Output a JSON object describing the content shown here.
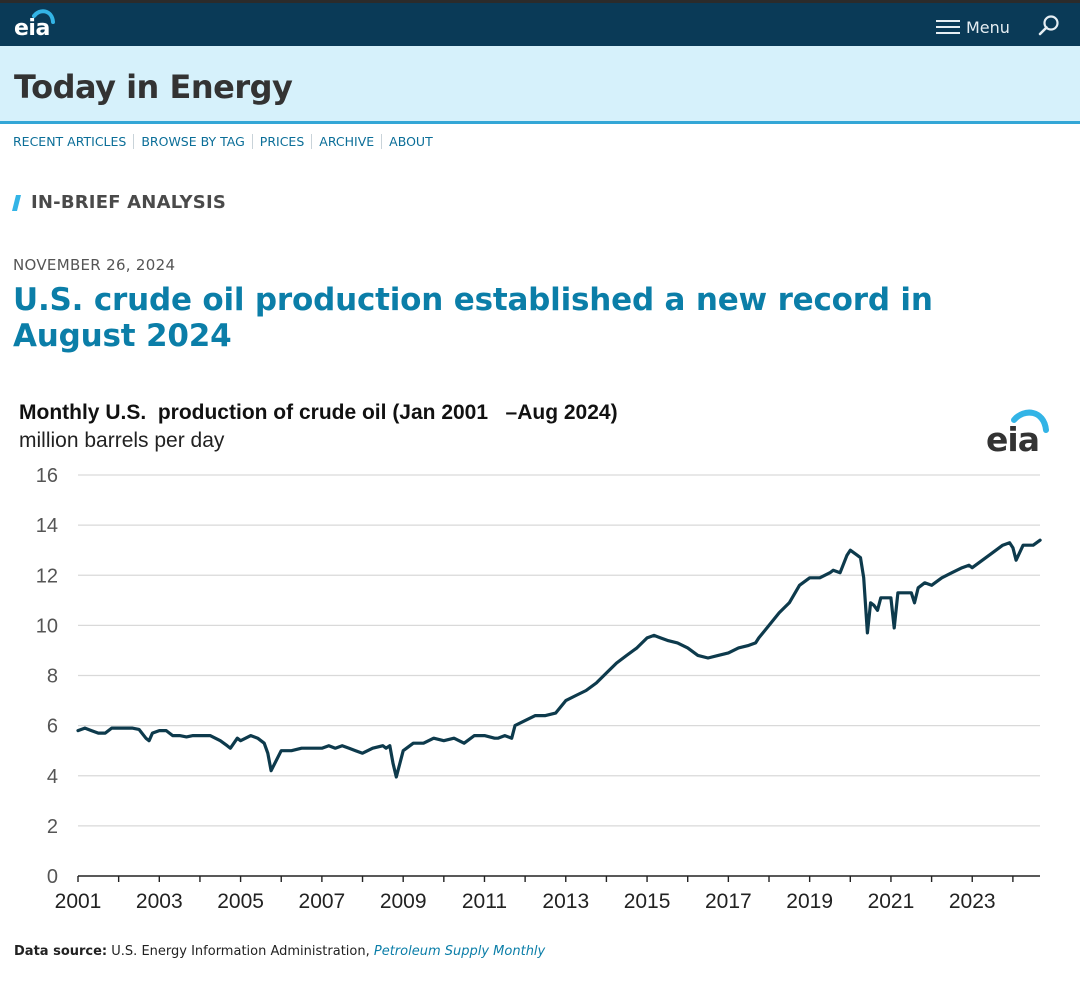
{
  "header": {
    "logo_text": "eia",
    "menu_label": "Menu"
  },
  "banner": {
    "title": "Today in Energy"
  },
  "nav": {
    "items": [
      "RECENT ARTICLES",
      "BROWSE BY TAG",
      "PRICES",
      "ARCHIVE",
      "ABOUT"
    ]
  },
  "section": {
    "label": "IN-BRIEF ANALYSIS"
  },
  "article": {
    "date": "NOVEMBER 26, 2024",
    "headline": "U.S. crude oil production established a new record in August 2024"
  },
  "chart_logo_text": "eia",
  "colors": {
    "line": "#0d3a4c",
    "accent": "#0b7ea8",
    "topbar": "#0a3a57",
    "banner": "#d6f1fb"
  },
  "chart_data": {
    "type": "line",
    "title": "Monthly U.S.  production of crude oil (Jan 2001   –Aug 2024)",
    "subtitle": "million barrels per day",
    "xlabel": "",
    "ylabel": "million barrels per day",
    "xlim": [
      2001,
      2024.667
    ],
    "ylim": [
      0,
      16
    ],
    "grid": true,
    "x_ticks": [
      "2001",
      "2003",
      "2005",
      "2007",
      "2009",
      "2011",
      "2013",
      "2015",
      "2017",
      "2019",
      "2021",
      "2023"
    ],
    "y_ticks": [
      "0",
      "2",
      "4",
      "6",
      "8",
      "10",
      "12",
      "14",
      "16"
    ],
    "series": [
      {
        "name": "U.S. crude oil production",
        "x": [
          2001.0,
          2001.17,
          2001.33,
          2001.5,
          2001.67,
          2001.83,
          2002.0,
          2002.17,
          2002.33,
          2002.5,
          2002.67,
          2002.75,
          2002.83,
          2003.0,
          2003.17,
          2003.33,
          2003.5,
          2003.67,
          2003.83,
          2004.0,
          2004.25,
          2004.5,
          2004.67,
          2004.75,
          2004.92,
          2005.0,
          2005.25,
          2005.42,
          2005.58,
          2005.67,
          2005.75,
          2006.0,
          2006.25,
          2006.5,
          2006.75,
          2007.0,
          2007.17,
          2007.33,
          2007.5,
          2007.67,
          2007.83,
          2008.0,
          2008.25,
          2008.5,
          2008.58,
          2008.67,
          2008.75,
          2008.83,
          2009.0,
          2009.25,
          2009.5,
          2009.75,
          2010.0,
          2010.25,
          2010.5,
          2010.75,
          2011.0,
          2011.25,
          2011.33,
          2011.5,
          2011.67,
          2011.75,
          2012.0,
          2012.25,
          2012.5,
          2012.75,
          2013.0,
          2013.25,
          2013.5,
          2013.75,
          2014.0,
          2014.25,
          2014.5,
          2014.75,
          2015.0,
          2015.17,
          2015.33,
          2015.5,
          2015.75,
          2016.0,
          2016.25,
          2016.5,
          2016.75,
          2017.0,
          2017.25,
          2017.5,
          2017.67,
          2017.75,
          2018.0,
          2018.25,
          2018.5,
          2018.75,
          2019.0,
          2019.25,
          2019.5,
          2019.58,
          2019.75,
          2019.92,
          2020.0,
          2020.17,
          2020.25,
          2020.33,
          2020.42,
          2020.5,
          2020.58,
          2020.67,
          2020.75,
          2020.83,
          2021.0,
          2021.08,
          2021.17,
          2021.33,
          2021.5,
          2021.58,
          2021.67,
          2021.83,
          2022.0,
          2022.25,
          2022.5,
          2022.75,
          2022.92,
          2023.0,
          2023.25,
          2023.5,
          2023.75,
          2023.92,
          2024.0,
          2024.08,
          2024.25,
          2024.5,
          2024.67
        ],
        "values": [
          5.8,
          5.9,
          5.8,
          5.7,
          5.7,
          5.9,
          5.9,
          5.9,
          5.9,
          5.85,
          5.5,
          5.4,
          5.7,
          5.8,
          5.8,
          5.6,
          5.6,
          5.55,
          5.6,
          5.6,
          5.6,
          5.4,
          5.2,
          5.1,
          5.5,
          5.4,
          5.6,
          5.5,
          5.3,
          4.9,
          4.2,
          5.0,
          5.0,
          5.1,
          5.1,
          5.1,
          5.2,
          5.1,
          5.2,
          5.1,
          5.0,
          4.9,
          5.1,
          5.2,
          5.1,
          5.2,
          4.5,
          3.95,
          5.0,
          5.3,
          5.3,
          5.5,
          5.4,
          5.5,
          5.3,
          5.6,
          5.6,
          5.5,
          5.5,
          5.6,
          5.5,
          6.0,
          6.2,
          6.4,
          6.4,
          6.5,
          7.0,
          7.2,
          7.4,
          7.7,
          8.1,
          8.5,
          8.8,
          9.1,
          9.5,
          9.6,
          9.5,
          9.4,
          9.3,
          9.1,
          8.8,
          8.7,
          8.8,
          8.9,
          9.1,
          9.2,
          9.3,
          9.5,
          10.0,
          10.5,
          10.9,
          11.6,
          11.9,
          11.9,
          12.1,
          12.2,
          12.1,
          12.8,
          13.0,
          12.8,
          12.7,
          11.9,
          9.7,
          10.9,
          10.8,
          10.6,
          11.1,
          11.1,
          11.1,
          9.9,
          11.3,
          11.3,
          11.3,
          10.9,
          11.5,
          11.7,
          11.6,
          11.9,
          12.1,
          12.3,
          12.4,
          12.3,
          12.6,
          12.9,
          13.2,
          13.3,
          13.1,
          12.6,
          13.2,
          13.2,
          13.4
        ]
      }
    ]
  },
  "source": {
    "label": "Data source:",
    "text": "U.S. Energy Information Administration,",
    "publication": "Petroleum Supply Monthly"
  }
}
